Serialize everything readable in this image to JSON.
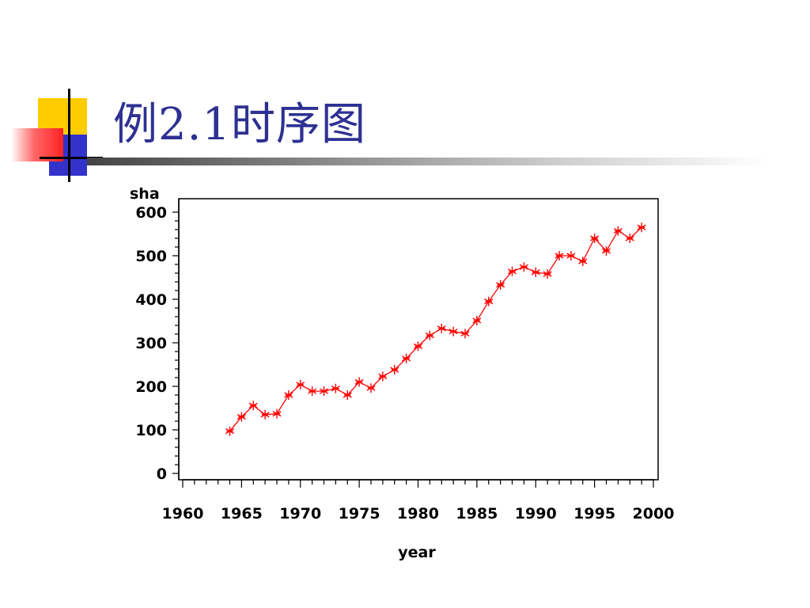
{
  "slide": {
    "title": "例2.1时序图",
    "accent_colors": {
      "yellow": "#ffcc00",
      "blue": "#3333cc",
      "red": "#ff3333",
      "title": "#2e3192"
    }
  },
  "chart_data": {
    "type": "line",
    "xlabel": "year",
    "ylabel": "sha",
    "xlim": [
      1960,
      2000
    ],
    "ylim": [
      0,
      600
    ],
    "x_ticks": [
      "1960",
      "1965",
      "1970",
      "1975",
      "1980",
      "1985",
      "1990",
      "1995",
      "2000"
    ],
    "y_ticks": [
      "0",
      "100",
      "200",
      "300",
      "400",
      "500",
      "600"
    ],
    "grid": false,
    "marker": "star",
    "series": [
      {
        "color": "#ff0000",
        "x": [
          1964,
          1965,
          1966,
          1967,
          1968,
          1969,
          1970,
          1971,
          1972,
          1973,
          1974,
          1975,
          1976,
          1977,
          1978,
          1979,
          1980,
          1981,
          1982,
          1983,
          1984,
          1985,
          1986,
          1987,
          1988,
          1989,
          1990,
          1991,
          1992,
          1993,
          1994,
          1995,
          1996,
          1997,
          1998,
          1999
        ],
        "y": [
          97,
          130,
          156,
          135,
          137,
          180,
          204,
          189,
          189,
          195,
          180,
          210,
          196,
          223,
          238,
          264,
          292,
          317,
          333,
          326,
          321,
          351,
          395,
          433,
          464,
          474,
          462,
          458,
          500,
          500,
          487,
          540,
          511,
          557,
          540,
          565
        ]
      }
    ]
  }
}
